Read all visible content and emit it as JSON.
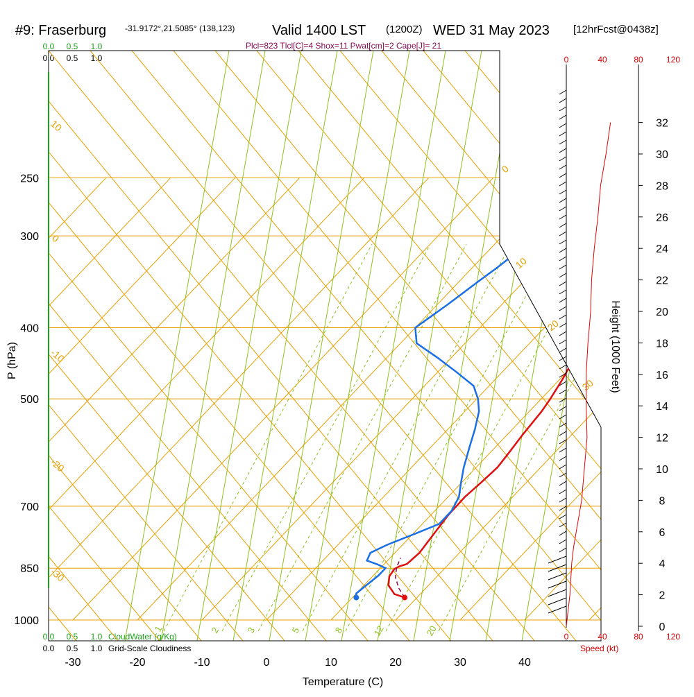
{
  "header": {
    "station": "#9: Fraserburg",
    "coords": "-31.9172°,21.5085° (138,123)",
    "valid": "Valid 1400 LST",
    "utc": "(1200Z)",
    "date": "WED 31 May 2023",
    "forecast": "[12hrFcst@0438z]"
  },
  "params": "Plcl=823 Tlcl[C]=4 Shox=11 Pwat[cm]=2 Cape[J]= 21",
  "legend": {
    "cloudwater_scale": [
      "0.0",
      "0.5",
      "1.0"
    ],
    "cloudiness_scale": [
      "0.0",
      "0.5",
      "1.0"
    ],
    "cloudwater_label": "CloudWater (g/Kg)",
    "cloudiness_label": "Grid-Scale Cloudiness"
  },
  "chart_data": {
    "type": "line",
    "title": "#9: Fraserburg",
    "xlabel": "Temperature (C)",
    "ylabel": "P (hPa)",
    "y2label": "Height (1000 Feet)",
    "xlim": [
      -35,
      36
    ],
    "ylim_log": [
      1000,
      250
    ],
    "x_ticks": [
      "-30",
      "-20",
      "-10",
      "0",
      "10",
      "20",
      "30",
      "40"
    ],
    "x_tick_values": [
      -30,
      -20,
      -10,
      0,
      10,
      20,
      30,
      40
    ],
    "p_ticks": [
      "250",
      "300",
      "400",
      "500",
      "700",
      "850",
      "1000"
    ],
    "p_tick_values": [
      250,
      300,
      400,
      500,
      700,
      850,
      1000
    ],
    "height_ticks": [
      "0",
      "2",
      "4",
      "6",
      "8",
      "10",
      "12",
      "14",
      "16",
      "18",
      "20",
      "22",
      "24",
      "26",
      "28",
      "30",
      "32"
    ],
    "speed_ticks_top": [
      "0",
      "40",
      "80",
      "120"
    ],
    "speed_ticks_bottom": [
      "0",
      "40",
      "80",
      "120"
    ],
    "speed_label": "Speed (kt)",
    "isotherm_labels": [
      "10",
      "0",
      "-10",
      "-20",
      "-30",
      "0",
      "10",
      "20",
      "30"
    ],
    "mixing_ratio_labels": [
      "1",
      "2",
      "3",
      "5",
      "8",
      "12",
      "20"
    ],
    "series": [
      {
        "name": "Temperature",
        "color": "#e01010",
        "points": [
          [
            18.1,
            932
          ],
          [
            16.0,
            922
          ],
          [
            13.8,
            897
          ],
          [
            12.6,
            872
          ],
          [
            12.3,
            852
          ],
          [
            12.7,
            845
          ],
          [
            13.5,
            839
          ],
          [
            13.8,
            810
          ],
          [
            13.2,
            760
          ],
          [
            12.7,
            720
          ],
          [
            12.6,
            680
          ],
          [
            13.0,
            650
          ],
          [
            13.3,
            620
          ],
          [
            12.9,
            590
          ],
          [
            12.4,
            560
          ],
          [
            11.9,
            520
          ],
          [
            11.4,
            500
          ],
          [
            10.4,
            470
          ],
          [
            9.1,
            440
          ],
          [
            7.3,
            410
          ],
          [
            5.4,
            385
          ],
          [
            3.2,
            360
          ],
          [
            1.5,
            340
          ],
          [
            -0.2,
            320
          ],
          [
            -1.5,
            300
          ],
          [
            -2.5,
            285
          ],
          [
            -3.0,
            272
          ],
          [
            -3.4,
            262
          ]
        ]
      },
      {
        "name": "Dewpoint",
        "color": "#1a6fe6",
        "points": [
          [
            10.6,
            932
          ],
          [
            10.0,
            920
          ],
          [
            10.3,
            900
          ],
          [
            10.8,
            870
          ],
          [
            10.8,
            850
          ],
          [
            9.0,
            840
          ],
          [
            6.8,
            830
          ],
          [
            6.2,
            810
          ],
          [
            7.6,
            790
          ],
          [
            10.6,
            760
          ],
          [
            12.6,
            740
          ],
          [
            12.6,
            710
          ],
          [
            11.7,
            680
          ],
          [
            9.9,
            650
          ],
          [
            8.1,
            620
          ],
          [
            5.9,
            580
          ],
          [
            4.2,
            550
          ],
          [
            2.2,
            520
          ],
          [
            0.2,
            500
          ],
          [
            -2.4,
            480
          ],
          [
            -7.0,
            460
          ],
          [
            -12.0,
            440
          ],
          [
            -17.5,
            420
          ],
          [
            -20.0,
            400
          ],
          [
            -18.4,
            372
          ],
          [
            -17.0,
            345
          ],
          [
            -16.2,
            332
          ],
          [
            -15.4,
            316
          ],
          [
            -14.5,
            300
          ],
          [
            -13.0,
            290
          ],
          [
            -12.1,
            276
          ],
          [
            -12.2,
            268
          ]
        ]
      },
      {
        "name": "Parcel",
        "color": "#8b0a50",
        "points": [
          [
            18.1,
            932
          ],
          [
            15.8,
            905
          ],
          [
            13.7,
            875
          ],
          [
            12.5,
            850
          ],
          [
            11.6,
            823
          ]
        ]
      }
    ],
    "surface": {
      "temperature": 18.1,
      "dewpoint": 10.6,
      "pressure": 932
    },
    "wind_speed_profile_kt": [
      [
        0,
        0
      ],
      [
        2,
        4
      ],
      [
        4,
        6
      ],
      [
        5,
        8
      ],
      [
        6,
        11
      ],
      [
        8,
        17
      ],
      [
        10,
        20
      ],
      [
        12,
        23
      ],
      [
        14,
        22
      ],
      [
        16,
        22
      ],
      [
        18,
        24
      ],
      [
        20,
        27
      ],
      [
        22,
        28
      ],
      [
        24,
        31
      ],
      [
        26,
        35
      ],
      [
        28,
        38
      ],
      [
        30,
        44
      ],
      [
        32,
        49
      ]
    ]
  },
  "colors": {
    "isobar": "#e8a000",
    "dry_adiabat": "#e8a000",
    "moist_adiabat": "#8cc21a",
    "mixing_ratio": "#8cc21a",
    "cloudwater": "#1aa31a",
    "speed": "#e00000"
  }
}
